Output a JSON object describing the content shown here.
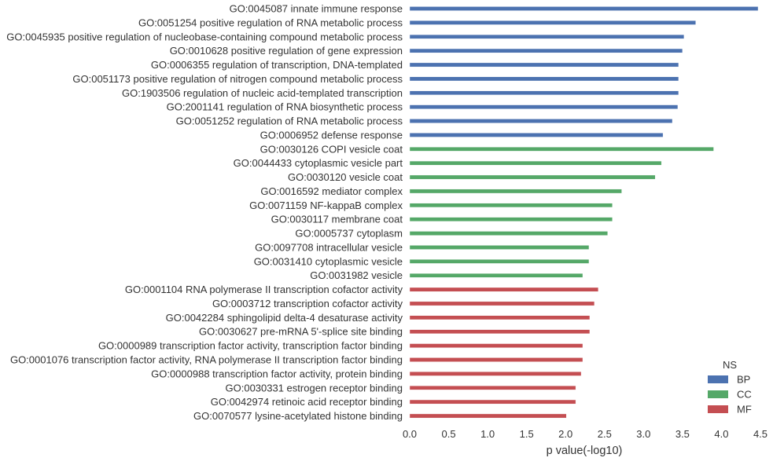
{
  "chart_data": {
    "type": "bar",
    "orientation": "horizontal",
    "xlabel": "p value(-log10)",
    "ylabel": "",
    "xlim": [
      0,
      4.5
    ],
    "xticks": [
      0.0,
      0.5,
      1.0,
      1.5,
      2.0,
      2.5,
      3.0,
      3.5,
      4.0,
      4.5
    ],
    "xtick_labels": [
      "0.0",
      "0.5",
      "1.0",
      "1.5",
      "2.0",
      "2.5",
      "3.0",
      "3.5",
      "4.0",
      "4.5"
    ],
    "grid": false,
    "legend": {
      "title": "NS",
      "placement": "bottom-right",
      "entries": [
        "BP",
        "CC",
        "MF"
      ]
    },
    "colors": {
      "BP": "#4C72B0",
      "CC": "#55A868",
      "MF": "#C44E52"
    },
    "bars": [
      {
        "label": "GO:0045087 innate immune response",
        "ns": "BP",
        "value": 4.47
      },
      {
        "label": "GO:0051254 positive regulation of RNA metabolic process",
        "ns": "BP",
        "value": 3.67
      },
      {
        "label": "GO:0045935 positive regulation of nucleobase-containing compound metabolic process",
        "ns": "BP",
        "value": 3.52
      },
      {
        "label": "GO:0010628 positive regulation of gene expression",
        "ns": "BP",
        "value": 3.5
      },
      {
        "label": "GO:0006355 regulation of transcription, DNA-templated",
        "ns": "BP",
        "value": 3.45
      },
      {
        "label": "GO:0051173 positive regulation of nitrogen compound metabolic process",
        "ns": "BP",
        "value": 3.45
      },
      {
        "label": "GO:1903506 regulation of nucleic acid-templated transcription",
        "ns": "BP",
        "value": 3.45
      },
      {
        "label": "GO:2001141 regulation of RNA biosynthetic process",
        "ns": "BP",
        "value": 3.44
      },
      {
        "label": "GO:0051252 regulation of RNA metabolic process",
        "ns": "BP",
        "value": 3.37
      },
      {
        "label": "GO:0006952 defense response",
        "ns": "BP",
        "value": 3.25
      },
      {
        "label": "GO:0030126 COPI vesicle coat",
        "ns": "CC",
        "value": 3.9
      },
      {
        "label": "GO:0044433 cytoplasmic vesicle part",
        "ns": "CC",
        "value": 3.23
      },
      {
        "label": "GO:0030120 vesicle coat",
        "ns": "CC",
        "value": 3.15
      },
      {
        "label": "GO:0016592 mediator complex",
        "ns": "CC",
        "value": 2.72
      },
      {
        "label": "GO:0071159 NF-kappaB complex",
        "ns": "CC",
        "value": 2.6
      },
      {
        "label": "GO:0030117 membrane coat",
        "ns": "CC",
        "value": 2.6
      },
      {
        "label": "GO:0005737 cytoplasm",
        "ns": "CC",
        "value": 2.54
      },
      {
        "label": "GO:0097708 intracellular vesicle",
        "ns": "CC",
        "value": 2.3
      },
      {
        "label": "GO:0031410 cytoplasmic vesicle",
        "ns": "CC",
        "value": 2.3
      },
      {
        "label": "GO:0031982 vesicle",
        "ns": "CC",
        "value": 2.22
      },
      {
        "label": "GO:0001104 RNA polymerase II transcription cofactor activity",
        "ns": "MF",
        "value": 2.42
      },
      {
        "label": "GO:0003712 transcription cofactor activity",
        "ns": "MF",
        "value": 2.37
      },
      {
        "label": "GO:0042284 sphingolipid delta-4 desaturase activity",
        "ns": "MF",
        "value": 2.31
      },
      {
        "label": "GO:0030627 pre-mRNA 5'-splice site binding",
        "ns": "MF",
        "value": 2.31
      },
      {
        "label": "GO:0000989 transcription factor activity, transcription factor binding",
        "ns": "MF",
        "value": 2.22
      },
      {
        "label": "GO:0001076 transcription factor activity, RNA polymerase II transcription factor binding",
        "ns": "MF",
        "value": 2.22
      },
      {
        "label": "GO:0000988 transcription factor activity, protein binding",
        "ns": "MF",
        "value": 2.2
      },
      {
        "label": "GO:0030331 estrogen receptor binding",
        "ns": "MF",
        "value": 2.13
      },
      {
        "label": "GO:0042974 retinoic acid receptor binding",
        "ns": "MF",
        "value": 2.13
      },
      {
        "label": "GO:0070577 lysine-acetylated histone binding",
        "ns": "MF",
        "value": 2.01
      }
    ]
  }
}
